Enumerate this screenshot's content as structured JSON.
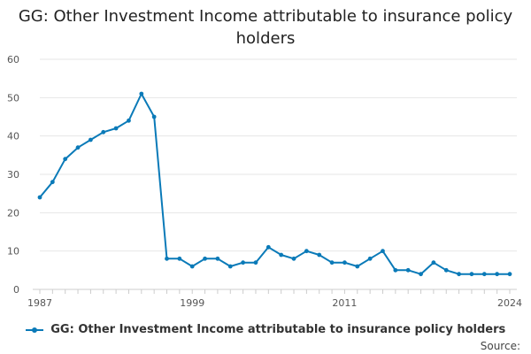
{
  "chart_data": {
    "type": "line",
    "title": "GG: Other Investment Income attributable to insurance policy holders",
    "xlabel": "",
    "ylabel": "",
    "ylim": [
      0,
      60
    ],
    "xlim": [
      1987,
      2024
    ],
    "yticks": [
      0,
      10,
      20,
      30,
      40,
      50,
      60
    ],
    "xticks": [
      1987,
      1999,
      2011,
      2024
    ],
    "grid": "horizontal",
    "legend_position": "bottom",
    "series": [
      {
        "name": "GG: Other Investment Income attributable to insurance policy holders",
        "color": "#0a7ab8",
        "x": [
          1987,
          1988,
          1989,
          1990,
          1991,
          1992,
          1993,
          1994,
          1995,
          1996,
          1997,
          1998,
          1999,
          2000,
          2001,
          2002,
          2003,
          2004,
          2005,
          2006,
          2007,
          2008,
          2009,
          2010,
          2011,
          2012,
          2013,
          2014,
          2015,
          2016,
          2017,
          2018,
          2019,
          2020,
          2021,
          2022,
          2023,
          2024
        ],
        "values": [
          24,
          28,
          34,
          37,
          39,
          41,
          42,
          44,
          51,
          45,
          8,
          8,
          6,
          8,
          8,
          6,
          7,
          7,
          11,
          9,
          8,
          10,
          9,
          7,
          7,
          6,
          8,
          10,
          5,
          5,
          4,
          7,
          5,
          4,
          4,
          4,
          4,
          4
        ]
      }
    ]
  },
  "legend": {
    "label": "GG: Other Investment Income attributable to insurance policy holders"
  },
  "source": {
    "label": "Source:"
  }
}
